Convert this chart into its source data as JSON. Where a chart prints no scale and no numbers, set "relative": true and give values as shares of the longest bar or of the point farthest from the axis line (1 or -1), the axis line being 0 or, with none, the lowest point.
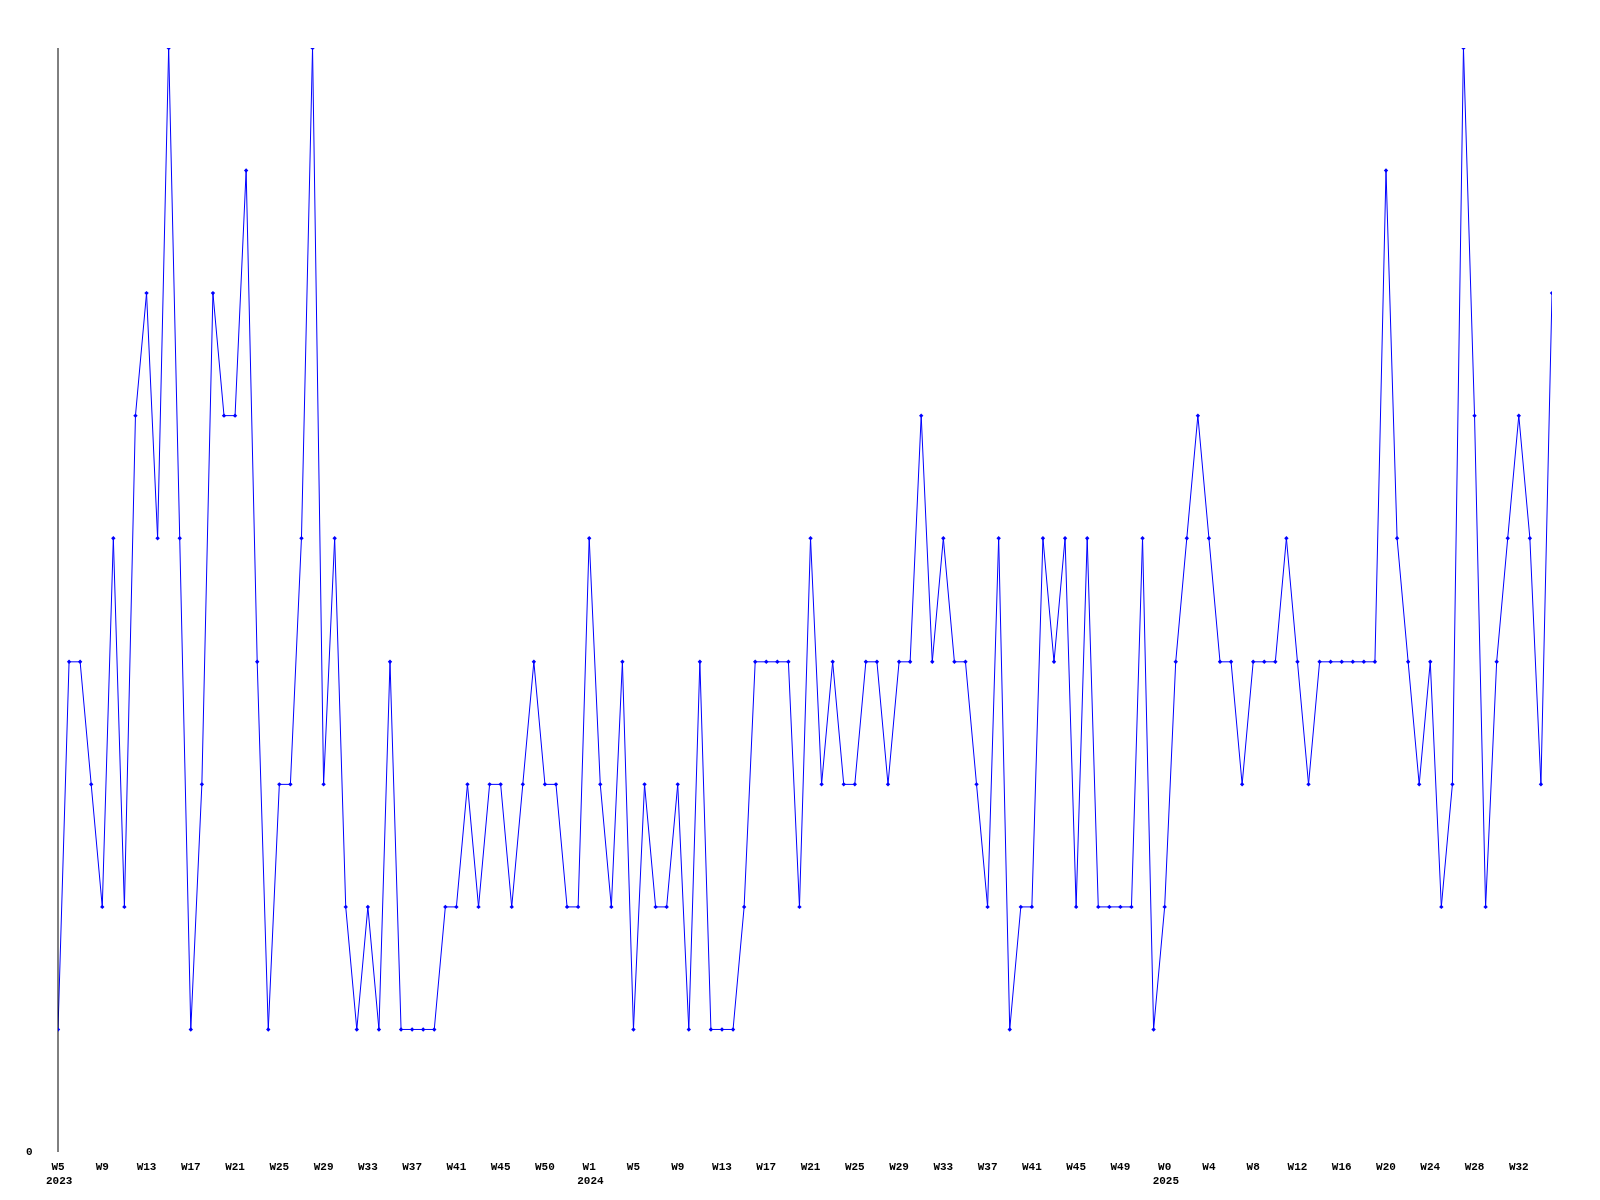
{
  "chart_data": {
    "type": "line",
    "relative": true,
    "marker": "diamond",
    "line_style": "solid",
    "grid": false,
    "legend": false,
    "annotations": [
      "0"
    ],
    "categories": [
      "W5\n2023",
      null,
      null,
      null,
      "W9",
      null,
      null,
      null,
      "W13",
      null,
      null,
      null,
      "W17",
      null,
      null,
      null,
      "W21",
      null,
      null,
      null,
      "W25",
      null,
      null,
      null,
      "W29",
      null,
      null,
      null,
      "W33",
      null,
      null,
      null,
      "W37",
      null,
      null,
      null,
      "W41",
      null,
      null,
      null,
      "W45",
      null,
      null,
      null,
      "W50",
      null,
      null,
      null,
      "W1\n2024",
      null,
      null,
      null,
      "W5",
      null,
      null,
      null,
      "W9",
      null,
      null,
      null,
      "W13",
      null,
      null,
      null,
      "W17",
      null,
      null,
      null,
      "W21",
      null,
      null,
      null,
      "W25",
      null,
      null,
      null,
      "W29",
      null,
      null,
      null,
      "W33",
      null,
      null,
      null,
      "W37",
      null,
      null,
      null,
      "W41",
      null,
      null,
      null,
      "W45",
      null,
      null,
      null,
      "W49",
      null,
      null,
      null,
      "W0\n2025",
      null,
      null,
      null,
      "W4",
      null,
      null,
      null,
      "W8",
      null,
      null,
      null,
      "W12",
      null,
      null,
      null,
      "W16",
      null,
      null,
      null,
      "W20",
      null,
      null,
      null,
      "W24",
      null,
      null,
      null,
      "W28",
      null,
      null,
      null,
      "W32",
      null,
      null,
      null
    ],
    "series": [
      {
        "color": "#0000ff",
        "values": [
          0.111,
          0.444,
          0.444,
          0.333,
          0.222,
          0.556,
          0.222,
          0.667,
          0.778,
          0.556,
          1,
          0.556,
          0.111,
          0.333,
          0.778,
          0.667,
          0.667,
          0.889,
          0.444,
          0.111,
          0.333,
          0.333,
          0.556,
          1,
          0.333,
          0.556,
          0.222,
          0.111,
          0.222,
          0.111,
          0.444,
          0.111,
          0.111,
          0.111,
          0.111,
          0.222,
          0.222,
          0.333,
          0.222,
          0.333,
          0.333,
          0.222,
          0.333,
          0.444,
          0.333,
          0.333,
          0.222,
          0.222,
          0.556,
          0.333,
          0.222,
          0.444,
          0.111,
          0.333,
          0.222,
          0.222,
          0.333,
          0.111,
          0.444,
          0.111,
          0.111,
          0.111,
          0.222,
          0.444,
          0.444,
          0.444,
          0.444,
          0.222,
          0.556,
          0.333,
          0.444,
          0.333,
          0.333,
          0.444,
          0.444,
          0.333,
          0.444,
          0.444,
          0.667,
          0.444,
          0.556,
          0.444,
          0.444,
          0.333,
          0.222,
          0.556,
          0.111,
          0.222,
          0.222,
          0.556,
          0.444,
          0.556,
          0.222,
          0.556,
          0.222,
          0.222,
          0.222,
          0.222,
          0.556,
          0.111,
          0.222,
          0.444,
          0.556,
          0.667,
          0.556,
          0.444,
          0.444,
          0.333,
          0.444,
          0.444,
          0.444,
          0.556,
          0.444,
          0.333,
          0.444,
          0.444,
          0.444,
          0.444,
          0.444,
          0.444,
          0.889,
          0.556,
          0.444,
          0.333,
          0.444,
          0.222,
          0.333,
          1,
          0.667,
          0.222,
          0.444,
          0.556,
          0.667,
          0.556,
          0.333,
          0.778
        ]
      }
    ]
  }
}
